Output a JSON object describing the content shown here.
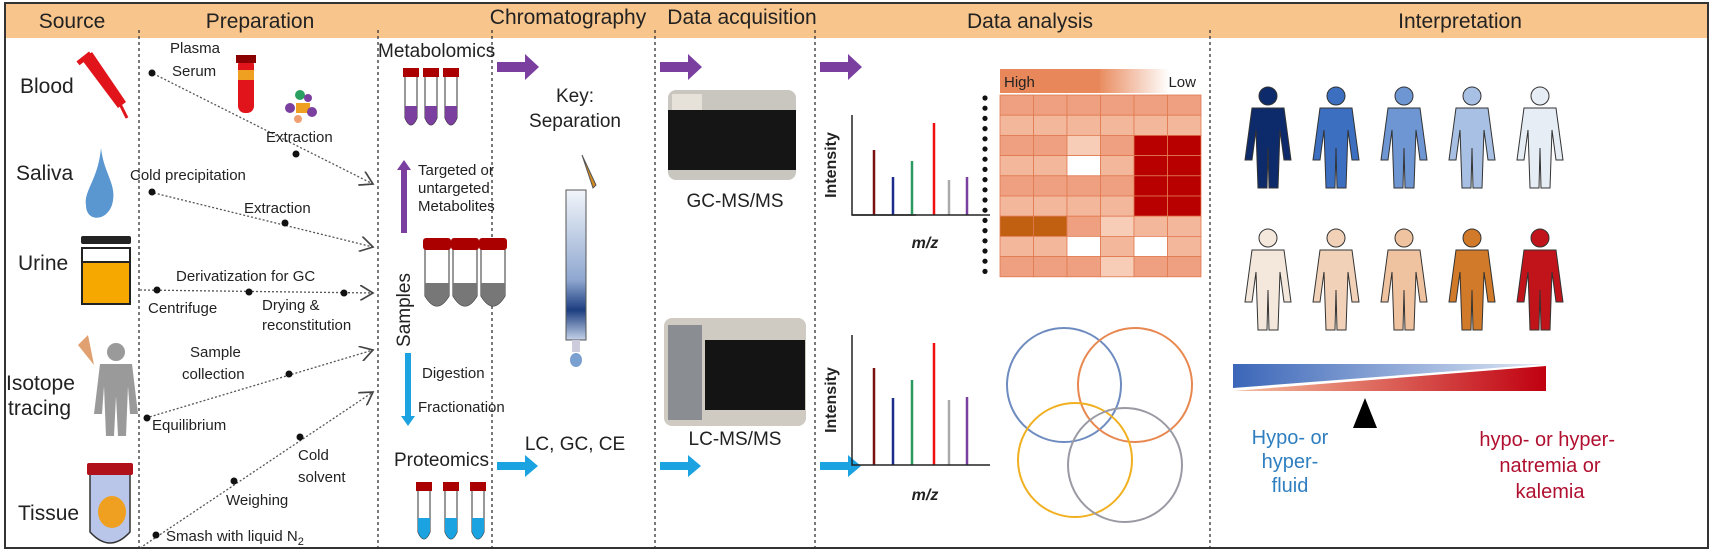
{
  "headers": [
    "Source",
    "Preparation",
    "Chromatography",
    "Data acquisition",
    "Data analysis",
    "Interpretation"
  ],
  "sources": [
    "Blood",
    "Saliva",
    "Urine",
    "Isotope",
    "tracing",
    "Tissue"
  ],
  "preparation": {
    "plasma": "Plasma",
    "serum": "Serum",
    "extraction1": "Extraction",
    "cold_precipitation": "Cold precipitation",
    "extraction2": "Extraction",
    "derivatization": "Derivatization for GC",
    "centrifuge": "Centrifuge",
    "drying": "Drying &",
    "reconstitution": "reconstitution",
    "sample": "Sample",
    "collection": "collection",
    "equilibrium": "Equilibrium",
    "cold": "Cold",
    "solvent": "solvent",
    "weighing": "Weighing",
    "smash": "Smash with liquid N",
    "smash_sub": "2"
  },
  "samples": {
    "metabolomics": "Metabolomics",
    "targeted1": "Targeted or",
    "targeted2": "untargeted",
    "targeted3": "Metabolites",
    "samples_label": "Samples",
    "digestion": "Digestion",
    "fractionation": "Fractionation",
    "proteomics": "Proteomics"
  },
  "chromatography": {
    "key": "Key:",
    "separation": "Separation",
    "methods": "LC, GC, CE"
  },
  "acquisition": {
    "gc": "GC-MS/MS",
    "lc": "LC-MS/MS"
  },
  "analysis": {
    "ylabel": "Intensity",
    "xlabel": "m/z",
    "high": "High",
    "low": "Low"
  },
  "interpretation": {
    "left1": "Hypo- or",
    "left2": "hyper-",
    "left3": "fluid",
    "right1": "hypo- or hyper-",
    "right2": "natremia or",
    "right3": "kalemia"
  },
  "colors": {
    "header": "#f8c58c",
    "purple": "#7b3fa0",
    "blue": "#1aa3e0",
    "red": "#c8141a",
    "left_text": "#2f7fc0",
    "right_text": "#b01030"
  }
}
